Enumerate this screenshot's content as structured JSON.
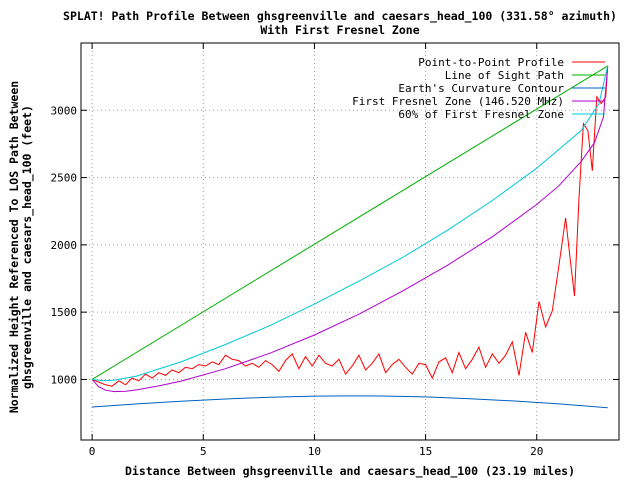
{
  "chart_data": {
    "type": "line",
    "title": "SPLAT! Path Profile Between ghsgreenville and caesars_head_100 (331.58° azimuth)",
    "subtitle": "With First Fresnel Zone",
    "xlabel": "Distance Between ghsgreenville and caesars_head_100 (23.19 miles)",
    "ylabel": "Normalized Height Referenced To LOS Path Between",
    "ylabel2": "ghsgreenville and caesars_head_100 (feet)",
    "xlim": [
      -0.5,
      23.7
    ],
    "ylim": [
      550,
      3500
    ],
    "xticks": [
      0,
      5,
      10,
      15,
      20
    ],
    "yticks": [
      1000,
      1500,
      2000,
      2500,
      3000
    ],
    "grid": true,
    "legend_position": "top-right",
    "series": [
      {
        "name": "Point-to-Point Profile",
        "color": "#ff0000",
        "x": [
          0.0,
          0.3,
          0.6,
          0.9,
          1.2,
          1.5,
          1.8,
          2.1,
          2.4,
          2.7,
          3.0,
          3.3,
          3.6,
          3.9,
          4.2,
          4.5,
          4.8,
          5.1,
          5.4,
          5.7,
          6.0,
          6.3,
          6.6,
          6.9,
          7.2,
          7.5,
          7.8,
          8.1,
          8.4,
          8.7,
          9.0,
          9.3,
          9.6,
          9.9,
          10.2,
          10.5,
          10.8,
          11.1,
          11.4,
          11.7,
          12.0,
          12.3,
          12.6,
          12.9,
          13.2,
          13.5,
          13.8,
          14.1,
          14.4,
          14.7,
          15.0,
          15.3,
          15.6,
          15.9,
          16.2,
          16.5,
          16.8,
          17.1,
          17.4,
          17.7,
          18.0,
          18.3,
          18.6,
          18.9,
          19.2,
          19.5,
          19.8,
          20.1,
          20.4,
          20.7,
          21.0,
          21.3,
          21.5,
          21.7,
          21.9,
          22.1,
          22.3,
          22.5,
          22.7,
          22.9,
          23.1,
          23.19
        ],
        "values": [
          1000,
          980,
          960,
          950,
          990,
          960,
          1010,
          990,
          1040,
          1010,
          1050,
          1030,
          1070,
          1050,
          1090,
          1080,
          1110,
          1100,
          1130,
          1110,
          1180,
          1150,
          1140,
          1100,
          1120,
          1090,
          1140,
          1110,
          1060,
          1140,
          1190,
          1080,
          1170,
          1100,
          1180,
          1120,
          1100,
          1150,
          1040,
          1100,
          1180,
          1070,
          1120,
          1190,
          1050,
          1110,
          1150,
          1090,
          1040,
          1120,
          1110,
          1010,
          1130,
          1160,
          1050,
          1200,
          1080,
          1150,
          1240,
          1090,
          1190,
          1120,
          1180,
          1280,
          1030,
          1350,
          1200,
          1580,
          1390,
          1510,
          1850,
          2200,
          1900,
          1620,
          2350,
          2900,
          2850,
          2550,
          3100,
          3050,
          3100,
          3330
        ]
      },
      {
        "name": "Line of Sight Path",
        "color": "#00b000",
        "x": [
          0,
          23.19
        ],
        "values": [
          1000,
          3330
        ]
      },
      {
        "name": "Earth's Curvature Contour",
        "color": "#0060c0",
        "x": [
          0,
          2,
          4,
          6,
          8,
          10,
          11.6,
          13,
          15,
          17,
          19,
          21,
          23.19
        ],
        "values": [
          795,
          818,
          838,
          855,
          868,
          876,
          878,
          877,
          870,
          857,
          840,
          818,
          790
        ]
      },
      {
        "name": "First Fresnel Zone (146.520 MHz)",
        "color": "#b000d0",
        "x": [
          0,
          0.3,
          0.6,
          1,
          1.5,
          2,
          3,
          4,
          6,
          8,
          10,
          12,
          14,
          16,
          18,
          20,
          21,
          22,
          22.6,
          23.0,
          23.19
        ],
        "values": [
          1000,
          945,
          920,
          910,
          912,
          922,
          952,
          988,
          1080,
          1195,
          1330,
          1485,
          1660,
          1850,
          2060,
          2300,
          2440,
          2620,
          2760,
          2950,
          3330
        ]
      },
      {
        "name": "60% of First Fresnel Zone",
        "color": "#00c8d8",
        "x": [
          0,
          0.5,
          1,
          2,
          4,
          6,
          8,
          10,
          12,
          14,
          16,
          18,
          20,
          22,
          22.8,
          23.19
        ],
        "values": [
          1000,
          990,
          995,
          1025,
          1130,
          1260,
          1400,
          1560,
          1730,
          1910,
          2110,
          2330,
          2570,
          2850,
          3050,
          3330
        ]
      }
    ]
  }
}
